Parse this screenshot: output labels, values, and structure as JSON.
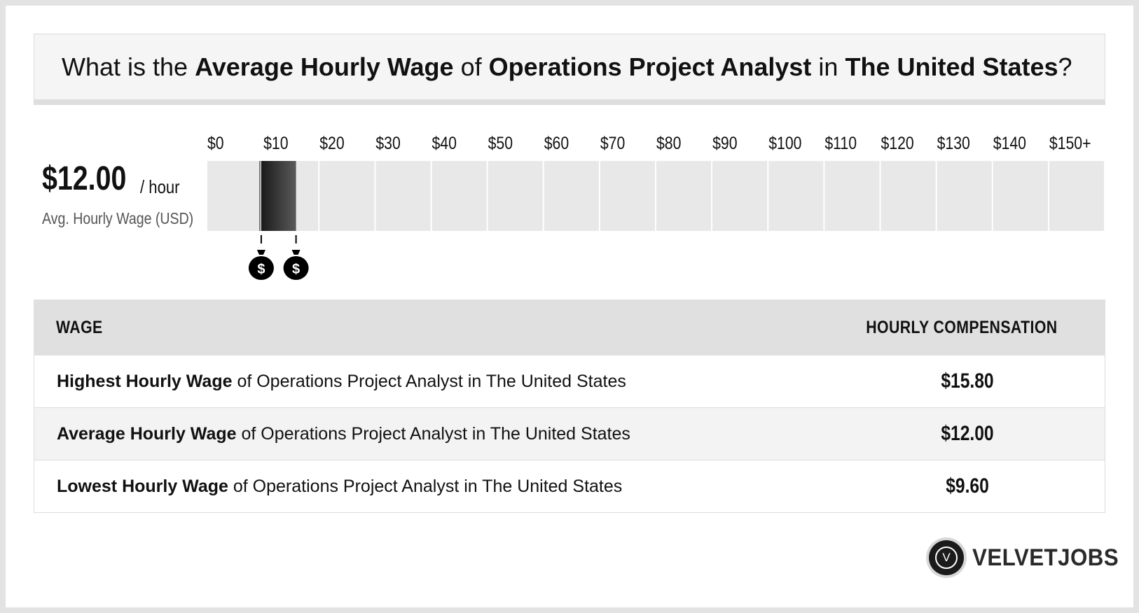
{
  "question": {
    "prefix": "What is the",
    "metric": "Average Hourly Wage",
    "of": "of",
    "job": "Operations Project Analyst",
    "in": "in",
    "location": "The United States",
    "suffix": "?"
  },
  "average": {
    "value": "$12.00",
    "unit": "/ hour",
    "label": "Avg. Hourly Wage (USD)"
  },
  "chart_data": {
    "type": "bar",
    "title": "",
    "xlabel": "",
    "ylabel": "",
    "tick_labels": [
      "$0",
      "$10",
      "$20",
      "$30",
      "$40",
      "$50",
      "$60",
      "$70",
      "$80",
      "$90",
      "$100",
      "$110",
      "$120",
      "$130",
      "$140",
      "$150+"
    ],
    "xlim": [
      0,
      150
    ],
    "range": {
      "low": 9.6,
      "average": 12.0,
      "high": 15.8
    },
    "markers": [
      {
        "name": "low",
        "value": 9.6,
        "symbol": "$"
      },
      {
        "name": "high",
        "value": 15.8,
        "symbol": "$"
      }
    ],
    "colors": {
      "track": "#e8e8e8",
      "range_dark": "#1a1a1a",
      "range_light": "#5a5a5a",
      "marker": "#000000"
    }
  },
  "table": {
    "header_left": "WAGE",
    "header_right": "HOURLY COMPENSATION",
    "rows": [
      {
        "strong": "Highest Hourly Wage",
        "rest": " of Operations Project Analyst in The United States",
        "value": "$15.80"
      },
      {
        "strong": "Average Hourly Wage",
        "rest": " of Operations Project Analyst in The United States",
        "value": "$12.00"
      },
      {
        "strong": "Lowest Hourly Wage",
        "rest": " of Operations Project Analyst in The United States",
        "value": "$9.60"
      }
    ]
  },
  "logo": {
    "mark": "V",
    "text": "VELVETJOBS"
  }
}
